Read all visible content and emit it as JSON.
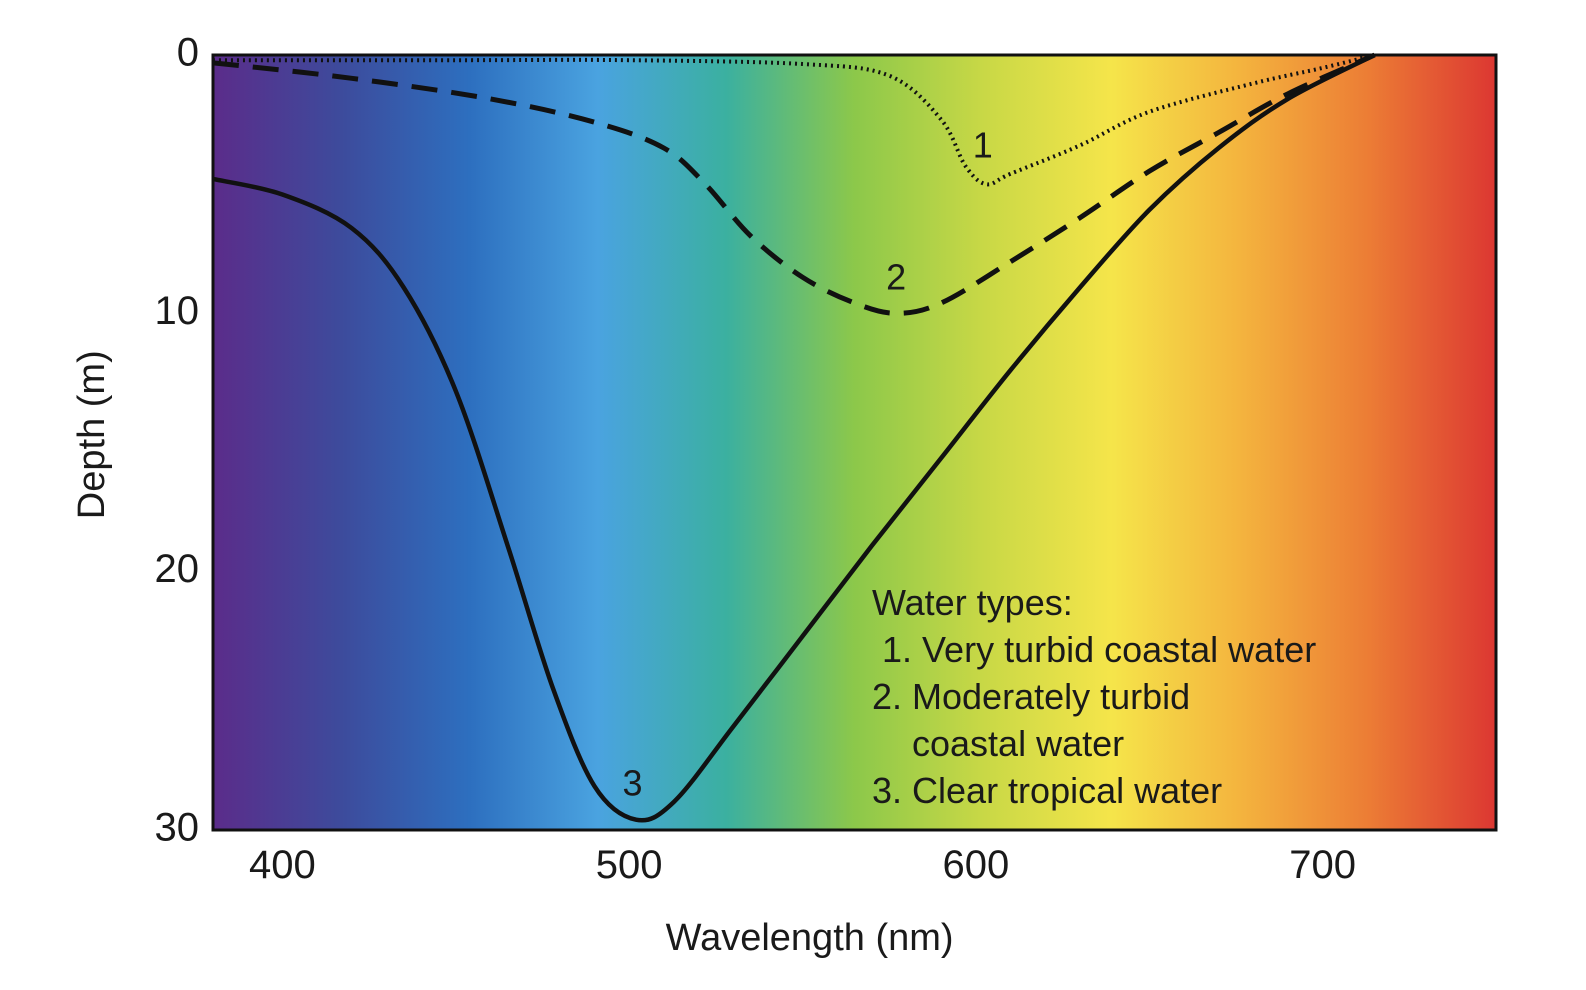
{
  "chart_data": {
    "type": "line",
    "title": "",
    "xlabel": "Wavelength (nm)",
    "ylabel": "Depth (m)",
    "xlim": [
      380,
      750
    ],
    "ylim": [
      0,
      30
    ],
    "y_inverted": true,
    "x_ticks": [
      {
        "value": 400,
        "label": "400"
      },
      {
        "value": 500,
        "label": "500"
      },
      {
        "value": 600,
        "label": "600"
      },
      {
        "value": 700,
        "label": "700"
      }
    ],
    "y_ticks": [
      {
        "value": 0,
        "label": "0"
      },
      {
        "value": 10,
        "label": "10"
      },
      {
        "value": 20,
        "label": "20"
      },
      {
        "value": 30,
        "label": "30"
      }
    ],
    "background": "visible light spectrum gradient",
    "spectrum_colors": [
      "#5b2c8a",
      "#3d4b9c",
      "#2d6fbf",
      "#4aa3e0",
      "#3bb0a0",
      "#8cc84a",
      "#c8d846",
      "#f5e54a",
      "#f4b43e",
      "#ec7d35",
      "#dc3732"
    ],
    "series": [
      {
        "id": "1",
        "name": "Very turbid coastal water",
        "style": "dotted",
        "label_at": {
          "x": 602,
          "y": 3.6
        },
        "points": [
          [
            380,
            0.2
          ],
          [
            450,
            0.2
          ],
          [
            500,
            0.2
          ],
          [
            550,
            0.35
          ],
          [
            575,
            0.8
          ],
          [
            590,
            2.5
          ],
          [
            597,
            4.3
          ],
          [
            603,
            5.0
          ],
          [
            610,
            4.6
          ],
          [
            630,
            3.5
          ],
          [
            650,
            2.2
          ],
          [
            680,
            1.1
          ],
          [
            700,
            0.5
          ],
          [
            715,
            0
          ]
        ]
      },
      {
        "id": "2",
        "name": "Moderately turbid coastal water",
        "style": "dashed",
        "label_at": {
          "x": 577,
          "y": 8.7
        },
        "points": [
          [
            380,
            0.3
          ],
          [
            420,
            0.9
          ],
          [
            460,
            1.7
          ],
          [
            490,
            2.6
          ],
          [
            510,
            3.6
          ],
          [
            522,
            5.0
          ],
          [
            535,
            7.0
          ],
          [
            550,
            8.6
          ],
          [
            565,
            9.6
          ],
          [
            577,
            10.0
          ],
          [
            590,
            9.6
          ],
          [
            610,
            8.0
          ],
          [
            630,
            6.3
          ],
          [
            650,
            4.5
          ],
          [
            670,
            3.0
          ],
          [
            690,
            1.5
          ],
          [
            715,
            0
          ]
        ]
      },
      {
        "id": "3",
        "name": "Clear tropical water",
        "style": "solid",
        "label_at": {
          "x": 501,
          "y": 28.3
        },
        "points": [
          [
            380,
            4.8
          ],
          [
            400,
            5.4
          ],
          [
            420,
            6.7
          ],
          [
            435,
            9.0
          ],
          [
            450,
            13.0
          ],
          [
            465,
            19.0
          ],
          [
            478,
            24.5
          ],
          [
            490,
            28.3
          ],
          [
            502,
            29.6
          ],
          [
            513,
            28.9
          ],
          [
            530,
            26.0
          ],
          [
            550,
            22.5
          ],
          [
            570,
            19.0
          ],
          [
            590,
            15.6
          ],
          [
            610,
            12.2
          ],
          [
            630,
            9.0
          ],
          [
            650,
            6.0
          ],
          [
            670,
            3.6
          ],
          [
            690,
            1.7
          ],
          [
            715,
            0
          ]
        ]
      }
    ],
    "legend": {
      "title": "Water types:",
      "position": "lower-right",
      "lines": [
        " 1. Very turbid coastal water",
        "2. Moderately turbid",
        "    coastal water",
        "3. Clear tropical water"
      ]
    },
    "colors": {
      "curve": "#111111",
      "frame": "#111111",
      "text": "#1a1a1a"
    }
  }
}
